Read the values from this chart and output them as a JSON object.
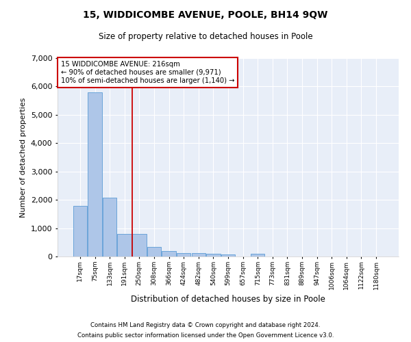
{
  "title_line1": "15, WIDDICOMBE AVENUE, POOLE, BH14 9QW",
  "title_line2": "Size of property relative to detached houses in Poole",
  "xlabel": "Distribution of detached houses by size in Poole",
  "ylabel": "Number of detached properties",
  "footnote1": "Contains HM Land Registry data © Crown copyright and database right 2024.",
  "footnote2": "Contains public sector information licensed under the Open Government Licence v3.0.",
  "bar_labels": [
    "17sqm",
    "75sqm",
    "133sqm",
    "191sqm",
    "250sqm",
    "308sqm",
    "366sqm",
    "424sqm",
    "482sqm",
    "540sqm",
    "599sqm",
    "657sqm",
    "715sqm",
    "773sqm",
    "831sqm",
    "889sqm",
    "947sqm",
    "1006sqm",
    "1064sqm",
    "1122sqm",
    "1180sqm"
  ],
  "bar_values": [
    1780,
    5800,
    2080,
    800,
    800,
    340,
    185,
    120,
    110,
    90,
    75,
    0,
    85,
    0,
    0,
    0,
    0,
    0,
    0,
    0,
    0
  ],
  "bar_color": "#aec6e8",
  "bar_edge_color": "#5b9bd5",
  "ylim": [
    0,
    7000
  ],
  "yticks": [
    0,
    1000,
    2000,
    3000,
    4000,
    5000,
    6000,
    7000
  ],
  "red_line_color": "#cc0000",
  "annotation_text_line1": "15 WIDDICOMBE AVENUE: 216sqm",
  "annotation_text_line2": "← 90% of detached houses are smaller (9,971)",
  "annotation_text_line3": "10% of semi-detached houses are larger (1,140) →",
  "annotation_box_color": "#ffffff",
  "annotation_border_color": "#cc0000",
  "background_color": "#e8eef8",
  "grid_color": "#ffffff",
  "fig_bg_color": "#ffffff"
}
